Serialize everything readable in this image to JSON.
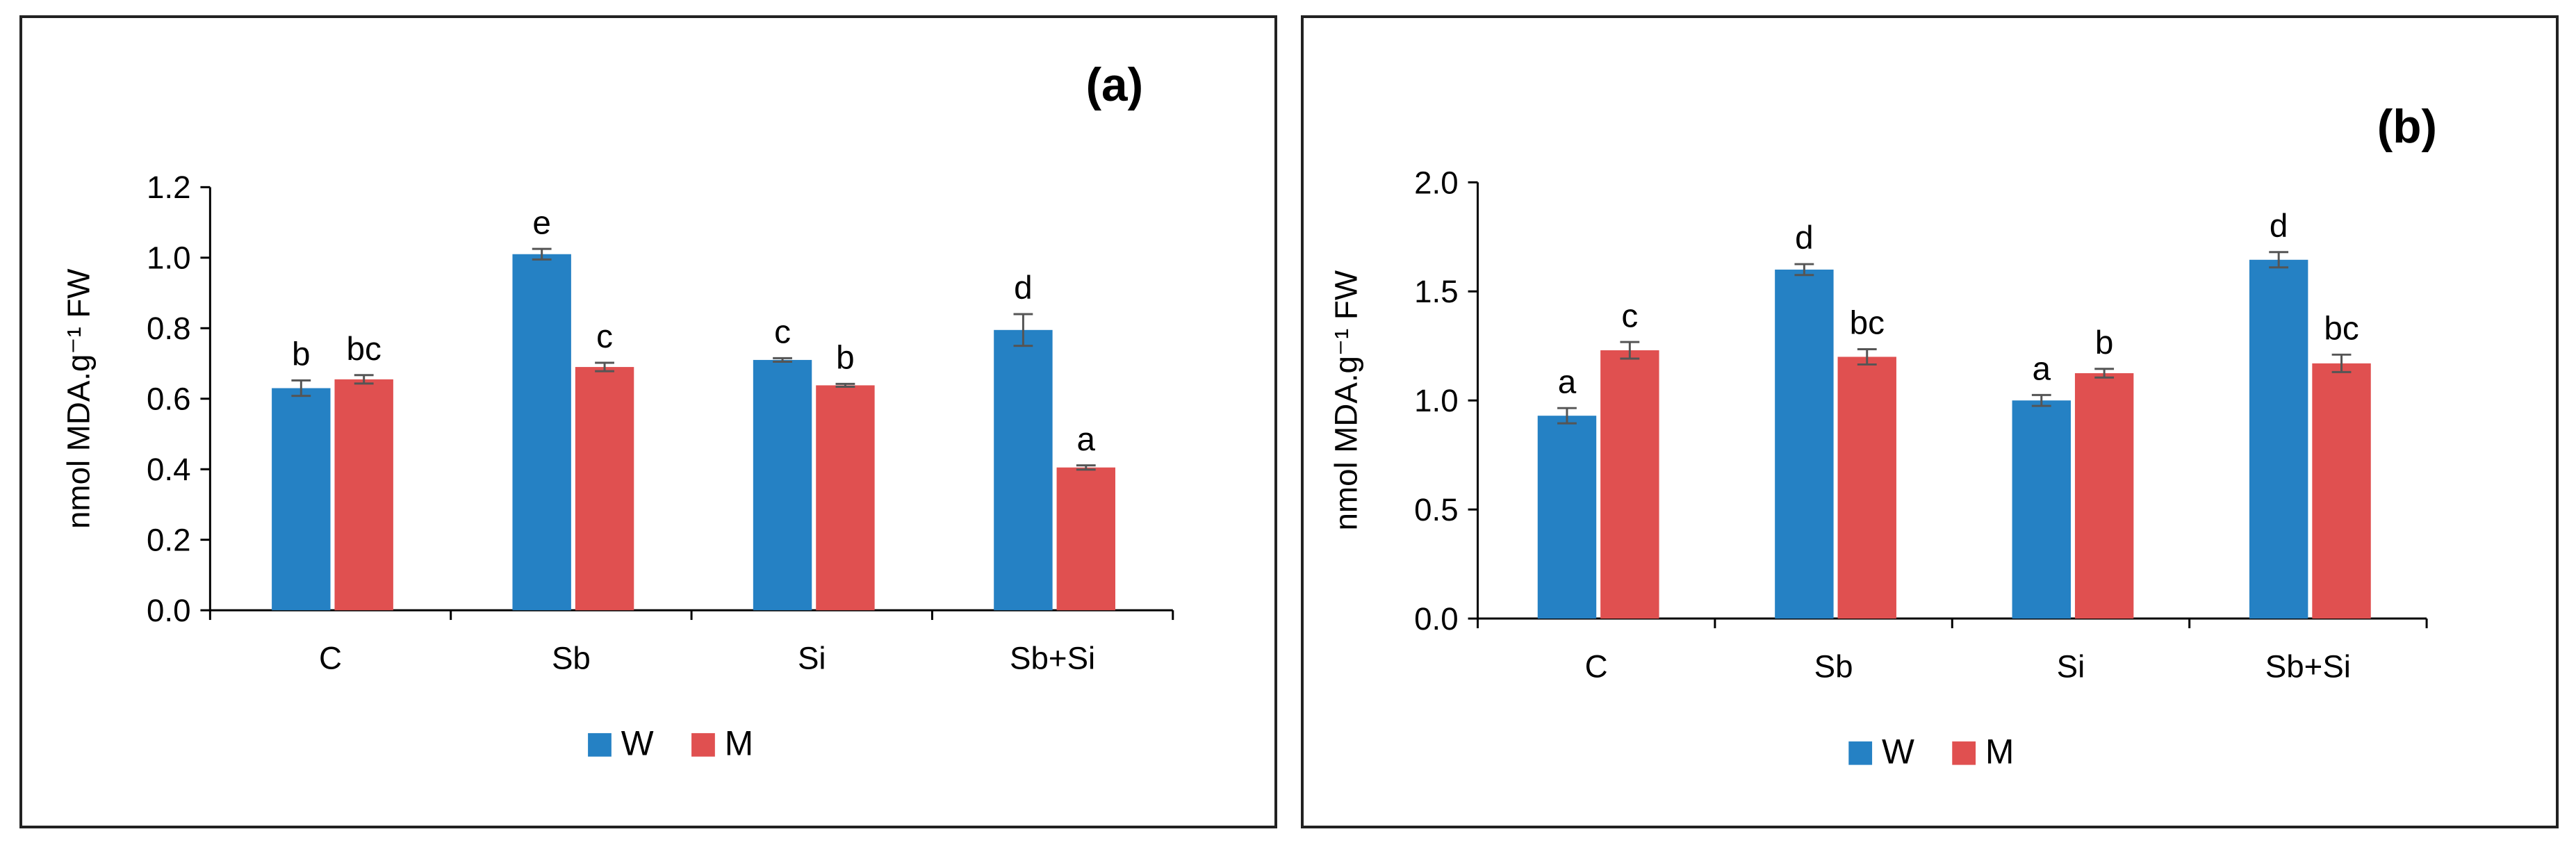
{
  "chart_data": [
    {
      "type": "bar",
      "panel_label": "(a)",
      "categories": [
        "C",
        "Sb",
        "Si",
        "Sb+Si"
      ],
      "ylabel": "nmol MDA.g⁻¹ FW",
      "ylim": [
        0,
        1.2
      ],
      "yticks": [
        0.0,
        0.2,
        0.4,
        0.6,
        0.8,
        1.0,
        1.2
      ],
      "ytick_labels": [
        "0.0",
        "0.2",
        "0.4",
        "0.6",
        "0.8",
        "1.0",
        "1.2"
      ],
      "series": [
        {
          "name": "W",
          "color": "#2581C4",
          "values": [
            0.63,
            1.01,
            0.71,
            0.795
          ],
          "errors": [
            0.022,
            0.015,
            0.005,
            0.045
          ],
          "letters": [
            "b",
            "e",
            "c",
            "d"
          ]
        },
        {
          "name": "M",
          "color": "#E05050",
          "values": [
            0.655,
            0.69,
            0.638,
            0.405
          ],
          "errors": [
            0.012,
            0.012,
            0.004,
            0.006
          ],
          "letters": [
            "bc",
            "c",
            "b",
            "a"
          ]
        }
      ]
    },
    {
      "type": "bar",
      "panel_label": "(b)",
      "categories": [
        "C",
        "Sb",
        "Si",
        "Sb+Si"
      ],
      "ylabel": "nmol MDA.g⁻¹ FW",
      "ylim": [
        0,
        2.0
      ],
      "yticks": [
        0.0,
        0.5,
        1.0,
        1.5,
        2.0
      ],
      "ytick_labels": [
        "0.0",
        "0.5",
        "1.0",
        "1.5",
        "2.0"
      ],
      "series": [
        {
          "name": "W",
          "color": "#2581C4",
          "values": [
            0.93,
            1.6,
            1.0,
            1.645
          ],
          "errors": [
            0.035,
            0.025,
            0.025,
            0.035
          ],
          "letters": [
            "a",
            "d",
            "a",
            "d"
          ]
        },
        {
          "name": "M",
          "color": "#E05050",
          "values": [
            1.23,
            1.2,
            1.125,
            1.17
          ],
          "errors": [
            0.038,
            0.035,
            0.02,
            0.04
          ],
          "letters": [
            "c",
            "bc",
            "b",
            "bc"
          ]
        }
      ]
    }
  ]
}
